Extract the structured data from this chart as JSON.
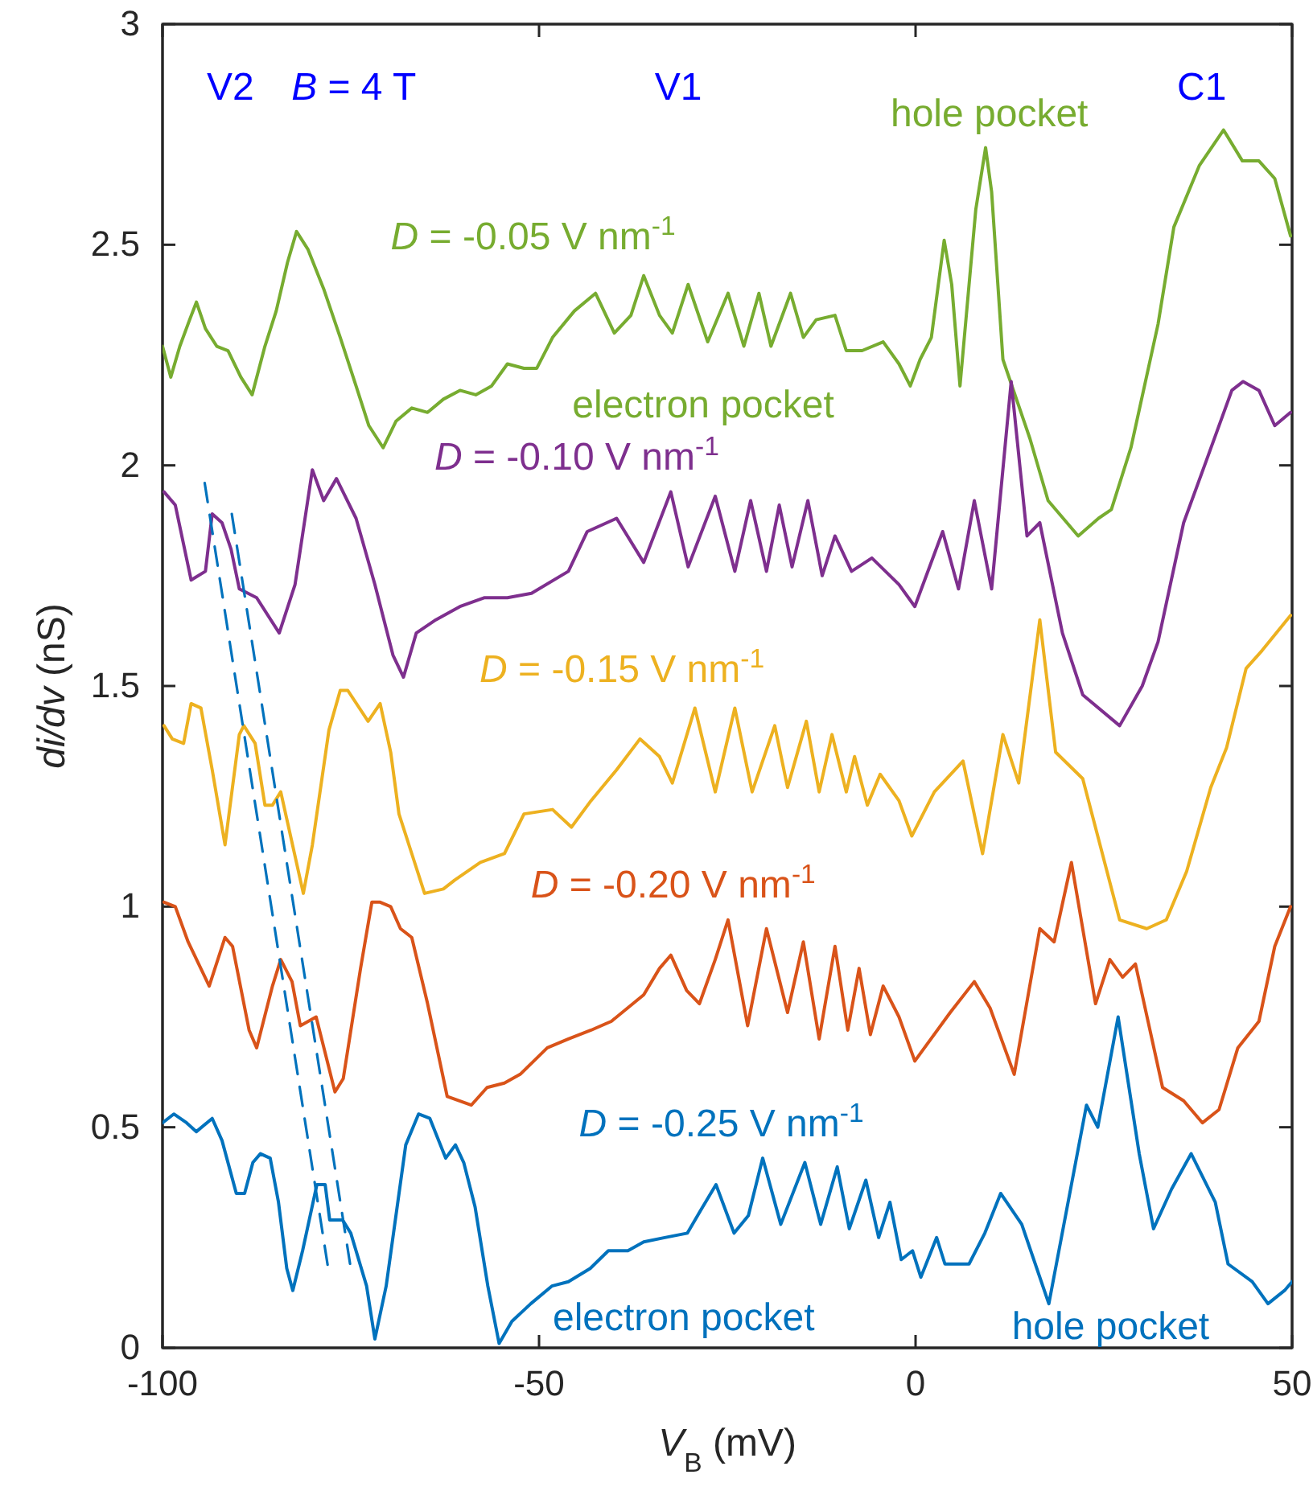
{
  "chart_data": {
    "type": "line",
    "xlabel": "V$_{B}$ (mV)",
    "ylabel": "di/dv (nS)",
    "xlim": [
      -100,
      50
    ],
    "xticks": [
      -100,
      -50,
      0,
      50
    ],
    "ylim": [
      0,
      3
    ],
    "yticks": [
      0,
      0.5,
      1,
      1.5,
      2,
      2.5,
      3
    ],
    "line_style": "solid",
    "annotations": [
      "V2",
      "B = 4 T",
      "V1",
      "C1",
      "hole pocket",
      "electron pocket",
      "electron pocket",
      "hole pocket"
    ],
    "series": [
      {
        "name": "D = -0.05 V nm$^{-1}$",
        "color": "#77ac30",
        "x": [
          -100,
          -98.9,
          -97.7,
          -96.4,
          -95.5,
          -94.3,
          -92.8,
          -91.3,
          -89.6,
          -88.1,
          -86.4,
          -84.9,
          -83.4,
          -82.2,
          -80.7,
          -78.6,
          -76.4,
          -74.3,
          -72.6,
          -70.7,
          -69.0,
          -66.9,
          -64.8,
          -62.7,
          -60.5,
          -58.4,
          -56.3,
          -54.2,
          -52.0,
          -50.3,
          -48.2,
          -45.3,
          -42.5,
          -40.0,
          -37.8,
          -36.1,
          -34.0,
          -32.3,
          -30.2,
          -27.6,
          -24.9,
          -22.8,
          -20.8,
          -19.2,
          -16.6,
          -14.9,
          -13.2,
          -10.7,
          -9.2,
          -7.1,
          -4.3,
          -2.2,
          -0.7,
          0.6,
          2.1,
          3.8,
          4.8,
          5.9,
          8.0,
          9.3,
          10.1,
          11.6,
          15.2,
          17.6,
          21.6,
          24.3,
          26.0,
          28.6,
          32.2,
          34.3,
          37.7,
          40.9,
          43.4,
          45.6,
          47.7,
          49.8
        ],
        "values": [
          2.27,
          2.2,
          2.27,
          2.33,
          2.37,
          2.31,
          2.27,
          2.26,
          2.2,
          2.16,
          2.27,
          2.35,
          2.46,
          2.53,
          2.49,
          2.4,
          2.29,
          2.18,
          2.09,
          2.04,
          2.1,
          2.13,
          2.12,
          2.15,
          2.17,
          2.16,
          2.18,
          2.23,
          2.22,
          2.22,
          2.29,
          2.35,
          2.39,
          2.3,
          2.34,
          2.43,
          2.34,
          2.3,
          2.41,
          2.28,
          2.39,
          2.27,
          2.39,
          2.27,
          2.39,
          2.29,
          2.33,
          2.34,
          2.26,
          2.26,
          2.28,
          2.23,
          2.18,
          2.24,
          2.29,
          2.51,
          2.41,
          2.18,
          2.58,
          2.72,
          2.62,
          2.24,
          2.06,
          1.92,
          1.84,
          1.88,
          1.9,
          2.04,
          2.32,
          2.54,
          2.68,
          2.76,
          2.69,
          2.69,
          2.65,
          2.52
        ]
      },
      {
        "name": "D = -0.10 V nm$^{-1}$",
        "color": "#7e2f8e",
        "x": [
          -99.8,
          -98.3,
          -96.2,
          -94.3,
          -93.4,
          -92.1,
          -90.9,
          -89.8,
          -87.5,
          -84.5,
          -82.4,
          -80.1,
          -78.6,
          -76.9,
          -74.3,
          -71.8,
          -69.4,
          -68.0,
          -66.3,
          -63.7,
          -60.5,
          -57.3,
          -54.2,
          -51.0,
          -46.1,
          -43.6,
          -39.7,
          -36.1,
          -32.5,
          -30.2,
          -26.6,
          -24.0,
          -21.9,
          -19.8,
          -18.1,
          -16.4,
          -14.3,
          -12.4,
          -10.7,
          -8.5,
          -5.8,
          -2.2,
          -0.1,
          3.6,
          5.7,
          7.8,
          10.1,
          12.7,
          14.8,
          16.5,
          19.5,
          22.2,
          27.1,
          30.1,
          32.2,
          35.6,
          38.6,
          42.0,
          43.5,
          45.6,
          47.7,
          49.8
        ],
        "values": [
          1.94,
          1.91,
          1.74,
          1.76,
          1.89,
          1.87,
          1.81,
          1.72,
          1.7,
          1.62,
          1.73,
          1.99,
          1.92,
          1.97,
          1.88,
          1.73,
          1.57,
          1.52,
          1.62,
          1.65,
          1.68,
          1.7,
          1.7,
          1.71,
          1.76,
          1.85,
          1.88,
          1.78,
          1.94,
          1.77,
          1.93,
          1.76,
          1.92,
          1.76,
          1.91,
          1.77,
          1.92,
          1.75,
          1.84,
          1.76,
          1.79,
          1.73,
          1.68,
          1.85,
          1.72,
          1.92,
          1.72,
          2.19,
          1.84,
          1.87,
          1.62,
          1.48,
          1.41,
          1.5,
          1.6,
          1.87,
          2.01,
          2.17,
          2.19,
          2.17,
          2.09,
          2.12
        ]
      },
      {
        "name": "D = -0.15 V nm$^{-1}$",
        "color": "#edb120",
        "x": [
          -99.8,
          -98.7,
          -97.2,
          -96.2,
          -94.9,
          -93.4,
          -91.7,
          -89.8,
          -89.2,
          -87.7,
          -86.4,
          -85.4,
          -84.3,
          -81.3,
          -80.1,
          -77.9,
          -76.4,
          -75.4,
          -72.7,
          -71.1,
          -69.7,
          -68.6,
          -66.9,
          -65.2,
          -62.7,
          -61.2,
          -57.8,
          -54.6,
          -52.0,
          -48.2,
          -45.7,
          -43.1,
          -39.7,
          -36.6,
          -34.0,
          -32.3,
          -29.3,
          -26.6,
          -24.0,
          -21.7,
          -18.7,
          -17.0,
          -14.5,
          -12.8,
          -11.1,
          -9.2,
          -8.1,
          -6.4,
          -4.7,
          -2.2,
          -0.5,
          2.5,
          6.3,
          8.9,
          11.6,
          13.7,
          16.5,
          18.6,
          22.2,
          27.1,
          30.7,
          33.3,
          36.0,
          39.2,
          41.3,
          43.9,
          46.0,
          49.8
        ],
        "values": [
          1.41,
          1.38,
          1.37,
          1.46,
          1.45,
          1.31,
          1.14,
          1.39,
          1.41,
          1.37,
          1.23,
          1.23,
          1.26,
          1.03,
          1.14,
          1.4,
          1.49,
          1.49,
          1.42,
          1.46,
          1.35,
          1.21,
          1.12,
          1.03,
          1.04,
          1.06,
          1.1,
          1.12,
          1.21,
          1.22,
          1.18,
          1.24,
          1.31,
          1.38,
          1.34,
          1.28,
          1.45,
          1.26,
          1.45,
          1.26,
          1.41,
          1.27,
          1.42,
          1.26,
          1.39,
          1.26,
          1.34,
          1.23,
          1.3,
          1.24,
          1.16,
          1.26,
          1.33,
          1.12,
          1.39,
          1.28,
          1.65,
          1.35,
          1.29,
          0.97,
          0.95,
          0.97,
          1.08,
          1.27,
          1.36,
          1.54,
          1.58,
          1.66
        ]
      },
      {
        "name": "D = -0.20 V nm$^{-1}$",
        "color": "#d95319",
        "x": [
          -99.8,
          -98.3,
          -96.6,
          -93.8,
          -91.7,
          -90.7,
          -88.5,
          -87.5,
          -85.4,
          -84.3,
          -82.8,
          -81.7,
          -79.6,
          -77.1,
          -76.0,
          -73.7,
          -72.2,
          -71.1,
          -69.7,
          -68.4,
          -66.9,
          -64.8,
          -62.2,
          -59.0,
          -56.9,
          -54.6,
          -52.5,
          -48.9,
          -46.1,
          -43.1,
          -40.4,
          -36.1,
          -34.0,
          -32.5,
          -30.4,
          -28.7,
          -26.6,
          -24.9,
          -22.3,
          -19.8,
          -17.0,
          -14.9,
          -12.8,
          -10.7,
          -9.0,
          -7.5,
          -6.0,
          -4.3,
          -2.2,
          -0.1,
          4.6,
          7.8,
          9.9,
          13.1,
          16.5,
          18.4,
          20.7,
          23.9,
          25.8,
          27.5,
          29.2,
          32.8,
          35.6,
          38.1,
          40.3,
          42.8,
          45.6,
          47.7,
          49.8
        ],
        "values": [
          1.01,
          1.0,
          0.92,
          0.82,
          0.93,
          0.91,
          0.72,
          0.68,
          0.82,
          0.88,
          0.83,
          0.73,
          0.75,
          0.58,
          0.61,
          0.86,
          1.01,
          1.01,
          1.0,
          0.95,
          0.93,
          0.78,
          0.57,
          0.55,
          0.59,
          0.6,
          0.62,
          0.68,
          0.7,
          0.72,
          0.74,
          0.8,
          0.86,
          0.89,
          0.81,
          0.78,
          0.88,
          0.97,
          0.73,
          0.95,
          0.76,
          0.92,
          0.7,
          0.91,
          0.72,
          0.86,
          0.71,
          0.82,
          0.75,
          0.65,
          0.76,
          0.83,
          0.77,
          0.62,
          0.95,
          0.92,
          1.1,
          0.78,
          0.88,
          0.84,
          0.87,
          0.59,
          0.56,
          0.51,
          0.54,
          0.68,
          0.74,
          0.91,
          1.0
        ]
      },
      {
        "name": "D = -0.25 V nm$^{-1}$",
        "color": "#0072bd",
        "x": [
          -100,
          -98.5,
          -96.8,
          -95.5,
          -93.4,
          -92.1,
          -90.2,
          -89.1,
          -88.0,
          -87.0,
          -85.7,
          -84.6,
          -83.5,
          -82.7,
          -81.4,
          -79.5,
          -78.4,
          -77.8,
          -76.1,
          -75.0,
          -72.9,
          -71.8,
          -70.3,
          -67.7,
          -66.0,
          -64.5,
          -62.4,
          -61.1,
          -60.0,
          -58.5,
          -56.8,
          -55.3,
          -53.6,
          -51.1,
          -48.3,
          -46.1,
          -43.2,
          -40.8,
          -38.2,
          -36.1,
          -33.3,
          -30.3,
          -28.6,
          -26.5,
          -24.1,
          -22.2,
          -20.3,
          -17.9,
          -14.7,
          -12.6,
          -10.4,
          -8.8,
          -6.6,
          -4.9,
          -3.4,
          -1.9,
          -0.4,
          0.7,
          2.8,
          3.9,
          7.1,
          9.2,
          11.3,
          14.1,
          17.7,
          22.7,
          24.2,
          26.9,
          29.7,
          31.6,
          34.0,
          36.6,
          39.8,
          41.5,
          44.7,
          46.8,
          49.0,
          50.0
        ],
        "values": [
          0.51,
          0.53,
          0.51,
          0.49,
          0.52,
          0.47,
          0.35,
          0.35,
          0.42,
          0.44,
          0.43,
          0.33,
          0.18,
          0.13,
          0.22,
          0.37,
          0.37,
          0.29,
          0.29,
          0.26,
          0.14,
          0.02,
          0.14,
          0.46,
          0.53,
          0.52,
          0.43,
          0.46,
          0.42,
          0.32,
          0.14,
          0.01,
          0.06,
          0.1,
          0.14,
          0.15,
          0.18,
          0.22,
          0.22,
          0.24,
          0.25,
          0.26,
          0.31,
          0.37,
          0.26,
          0.3,
          0.43,
          0.28,
          0.42,
          0.28,
          0.41,
          0.27,
          0.38,
          0.25,
          0.33,
          0.2,
          0.22,
          0.16,
          0.25,
          0.19,
          0.19,
          0.26,
          0.35,
          0.28,
          0.1,
          0.55,
          0.5,
          0.75,
          0.44,
          0.27,
          0.36,
          0.44,
          0.33,
          0.19,
          0.15,
          0.1,
          0.13,
          0.15
        ]
      },
      {
        "color": "#0072bd",
        "line_style": "dashed",
        "x": [
          -94.4,
          -78.0
        ],
        "values": [
          1.96,
          0.18
        ]
      },
      {
        "color": "#0072bd",
        "line_style": "dashed",
        "x": [
          -90.8,
          -75.0
        ],
        "values": [
          1.89,
          0.18
        ]
      }
    ]
  }
}
